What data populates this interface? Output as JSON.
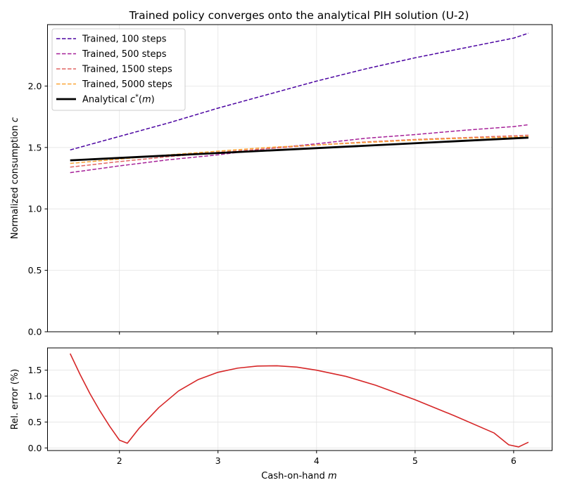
{
  "chart_data": [
    {
      "type": "line",
      "title": "Trained policy converges onto the analytical PIH solution (U-2)",
      "ylabel_text": "Normalized consumption",
      "ylabel_var": "c",
      "xlim": [
        1.27,
        6.39
      ],
      "ylim": [
        0.0,
        2.5
      ],
      "x_ticks": [
        2,
        3,
        4,
        5,
        6
      ],
      "y_ticks": [
        0.0,
        0.5,
        1.0,
        1.5,
        2.0
      ],
      "y_tick_labels": [
        "0.0",
        "0.5",
        "1.0",
        "1.5",
        "2.0"
      ],
      "grid": true,
      "legend_placement": "upper-left",
      "series": [
        {
          "name": "Trained, 100 steps",
          "color": "#4b03a1",
          "style": "dashed",
          "x": [
            1.5,
            2.0,
            2.5,
            3.0,
            3.5,
            4.0,
            4.5,
            5.0,
            5.5,
            6.0,
            6.15
          ],
          "y": [
            1.48,
            1.59,
            1.7,
            1.82,
            1.93,
            2.04,
            2.14,
            2.23,
            2.31,
            2.39,
            2.43
          ]
        },
        {
          "name": "Trained, 500 steps",
          "color": "#a62098",
          "style": "dashed",
          "x": [
            1.5,
            2.0,
            2.5,
            3.0,
            3.5,
            4.0,
            4.5,
            5.0,
            5.5,
            6.0,
            6.15
          ],
          "y": [
            1.295,
            1.35,
            1.4,
            1.44,
            1.49,
            1.53,
            1.575,
            1.605,
            1.64,
            1.67,
            1.685
          ]
        },
        {
          "name": "Trained, 1500 steps",
          "color": "#e16462",
          "style": "dashed",
          "x": [
            1.5,
            2.0,
            2.5,
            3.0,
            3.5,
            4.0,
            4.5,
            5.0,
            5.5,
            6.0,
            6.15
          ],
          "y": [
            1.34,
            1.385,
            1.425,
            1.46,
            1.49,
            1.52,
            1.545,
            1.565,
            1.58,
            1.595,
            1.6
          ]
        },
        {
          "name": "Trained, 5000 steps",
          "color": "#fca636",
          "style": "dashed",
          "x": [
            1.5,
            2.0,
            2.5,
            3.0,
            3.5,
            4.0,
            4.5,
            5.0,
            5.5,
            6.0,
            6.15
          ],
          "y": [
            1.37,
            1.405,
            1.44,
            1.47,
            1.5,
            1.52,
            1.54,
            1.56,
            1.575,
            1.585,
            1.59
          ]
        },
        {
          "name_prefix": "Analytical ",
          "name_var": "c",
          "name_sup": "*",
          "name_suffix": "(m)",
          "color": "#000000",
          "style": "solid",
          "x": [
            1.5,
            6.15
          ],
          "y": [
            1.395,
            1.58
          ]
        }
      ]
    },
    {
      "type": "line",
      "ylabel": "Rel. error (%)",
      "xlabel_text": "Cash-on-hand",
      "xlabel_var": "m",
      "xlim": [
        1.27,
        6.39
      ],
      "ylim": [
        -0.05,
        1.93
      ],
      "x_ticks": [
        2,
        3,
        4,
        5,
        6
      ],
      "y_ticks": [
        0.0,
        0.5,
        1.0,
        1.5
      ],
      "y_tick_labels": [
        "0.0",
        "0.5",
        "1.0",
        "1.5"
      ],
      "grid": true,
      "series": [
        {
          "color": "#d62728",
          "style": "solid",
          "x": [
            1.5,
            1.6,
            1.7,
            1.8,
            1.9,
            2.0,
            2.08,
            2.2,
            2.4,
            2.6,
            2.8,
            3.0,
            3.2,
            3.4,
            3.6,
            3.8,
            4.0,
            4.3,
            4.6,
            5.0,
            5.4,
            5.8,
            5.95,
            6.05,
            6.15
          ],
          "y": [
            1.82,
            1.42,
            1.05,
            0.72,
            0.42,
            0.15,
            0.09,
            0.38,
            0.78,
            1.1,
            1.32,
            1.46,
            1.54,
            1.58,
            1.585,
            1.56,
            1.5,
            1.38,
            1.21,
            0.93,
            0.62,
            0.29,
            0.06,
            0.02,
            0.11
          ]
        }
      ]
    }
  ]
}
